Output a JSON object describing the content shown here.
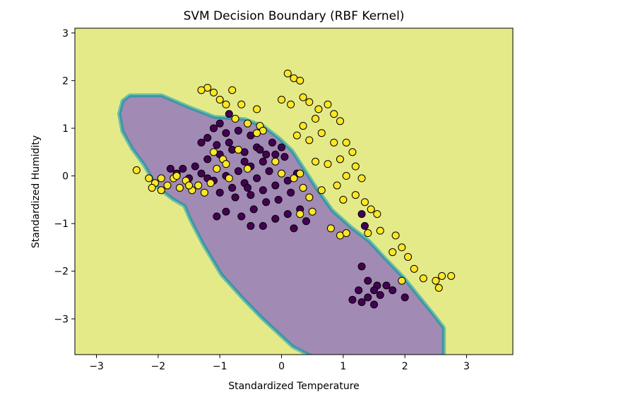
{
  "chart_data": {
    "type": "scatter",
    "title": "SVM Decision Boundary (RBF Kernel)",
    "xlabel": "Standardized Temperature",
    "ylabel": "Standardized Humidity",
    "xlim": [
      -3.35,
      3.75
    ],
    "ylim": [
      -3.75,
      3.1
    ],
    "xticks": [
      -3,
      -2,
      -1,
      0,
      1,
      2,
      3
    ],
    "yticks": [
      -3,
      -2,
      -1,
      0,
      1,
      2,
      3
    ],
    "grid": false,
    "colors": {
      "background_region": "#e5ea89",
      "decision_region": "#a18ab3",
      "boundary_band_1": "#6fc0a4",
      "boundary_band_2": "#3e95a6",
      "class_0": "#440154",
      "class_1": "#fde725",
      "marker_edge": "#000000"
    },
    "decision_region": {
      "description_class": "class_0",
      "polygon": [
        [
          -2.6,
          1.3
        ],
        [
          -2.55,
          1.55
        ],
        [
          -2.45,
          1.65
        ],
        [
          -1.95,
          1.65
        ],
        [
          -1.5,
          1.4
        ],
        [
          -1.1,
          1.2
        ],
        [
          -0.6,
          1.15
        ],
        [
          -0.3,
          1.0
        ],
        [
          -0.05,
          0.75
        ],
        [
          0.15,
          0.5
        ],
        [
          0.35,
          0.1
        ],
        [
          0.55,
          -0.3
        ],
        [
          0.8,
          -0.75
        ],
        [
          1.1,
          -1.1
        ],
        [
          1.4,
          -1.4
        ],
        [
          1.65,
          -1.75
        ],
        [
          1.95,
          -2.15
        ],
        [
          2.2,
          -2.55
        ],
        [
          2.45,
          -2.95
        ],
        [
          2.6,
          -3.2
        ],
        [
          2.6,
          -3.75
        ],
        [
          0.5,
          -3.75
        ],
        [
          0.2,
          -3.55
        ],
        [
          -0.3,
          -2.95
        ],
        [
          -0.6,
          -2.55
        ],
        [
          -0.95,
          -2.05
        ],
        [
          -1.25,
          -1.4
        ],
        [
          -1.45,
          -0.9
        ],
        [
          -1.55,
          -0.6
        ],
        [
          -1.75,
          -0.45
        ],
        [
          -2.0,
          -0.2
        ],
        [
          -2.2,
          0.25
        ],
        [
          -2.4,
          0.6
        ],
        [
          -2.55,
          0.95
        ]
      ]
    },
    "series": [
      {
        "class": 0,
        "points": [
          [
            -1.1,
            1.0
          ],
          [
            -1.0,
            1.1
          ],
          [
            -0.85,
            1.3
          ],
          [
            -1.2,
            0.8
          ],
          [
            -1.3,
            0.7
          ],
          [
            -0.9,
            0.9
          ],
          [
            -0.7,
            0.95
          ],
          [
            -0.5,
            0.85
          ],
          [
            -0.4,
            0.6
          ],
          [
            -0.6,
            0.5
          ],
          [
            -0.8,
            0.55
          ],
          [
            -1.0,
            0.45
          ],
          [
            -1.2,
            0.35
          ],
          [
            -1.4,
            0.2
          ],
          [
            -1.6,
            0.15
          ],
          [
            -1.8,
            0.15
          ],
          [
            -1.7,
            0.05
          ],
          [
            -1.5,
            -0.05
          ],
          [
            -1.3,
            0.05
          ],
          [
            -1.1,
            -0.1
          ],
          [
            -0.9,
            0.0
          ],
          [
            -0.7,
            0.1
          ],
          [
            -0.5,
            0.2
          ],
          [
            -0.3,
            0.3
          ],
          [
            -0.1,
            0.45
          ],
          [
            0.05,
            0.4
          ],
          [
            -0.2,
            0.1
          ],
          [
            -0.4,
            -0.05
          ],
          [
            -0.6,
            -0.15
          ],
          [
            -0.8,
            -0.25
          ],
          [
            -1.0,
            -0.35
          ],
          [
            -0.5,
            -0.4
          ],
          [
            -0.3,
            -0.3
          ],
          [
            -0.1,
            -0.2
          ],
          [
            0.1,
            -0.1
          ],
          [
            0.25,
            0.05
          ],
          [
            0.15,
            -0.35
          ],
          [
            -0.05,
            -0.5
          ],
          [
            -0.25,
            -0.55
          ],
          [
            -0.45,
            -0.7
          ],
          [
            -0.65,
            -0.85
          ],
          [
            -0.9,
            -0.75
          ],
          [
            -1.05,
            -0.85
          ],
          [
            -0.5,
            -1.05
          ],
          [
            -0.3,
            -1.05
          ],
          [
            -0.1,
            -0.9
          ],
          [
            0.1,
            -0.8
          ],
          [
            0.3,
            -0.7
          ],
          [
            0.4,
            -0.95
          ],
          [
            0.2,
            -1.1
          ],
          [
            -0.35,
            0.55
          ],
          [
            -0.15,
            0.7
          ],
          [
            0.0,
            0.6
          ],
          [
            -0.85,
            0.7
          ],
          [
            -1.05,
            0.65
          ],
          [
            -0.6,
            0.3
          ],
          [
            -0.25,
            0.45
          ],
          [
            -0.75,
            -0.45
          ],
          [
            -0.55,
            -0.25
          ],
          [
            -1.2,
            -0.05
          ],
          [
            1.3,
            -0.8
          ],
          [
            1.35,
            -1.05
          ],
          [
            1.3,
            -1.9
          ],
          [
            1.4,
            -2.2
          ],
          [
            1.55,
            -2.3
          ],
          [
            1.25,
            -2.4
          ],
          [
            1.4,
            -2.55
          ],
          [
            1.6,
            -2.5
          ],
          [
            1.8,
            -2.4
          ],
          [
            1.5,
            -2.7
          ],
          [
            1.3,
            -2.65
          ],
          [
            1.7,
            -2.3
          ],
          [
            2.0,
            -2.55
          ],
          [
            1.15,
            -2.6
          ],
          [
            1.5,
            -2.4
          ]
        ]
      },
      {
        "class": 1,
        "points": [
          [
            -1.2,
            1.85
          ],
          [
            -1.1,
            1.75
          ],
          [
            -1.0,
            1.6
          ],
          [
            -0.8,
            1.8
          ],
          [
            -0.65,
            1.5
          ],
          [
            -1.3,
            1.8
          ],
          [
            -0.4,
            1.4
          ],
          [
            -0.35,
            1.05
          ],
          [
            -0.3,
            0.95
          ],
          [
            0.1,
            2.15
          ],
          [
            0.2,
            2.05
          ],
          [
            0.3,
            2.0
          ],
          [
            0.0,
            1.6
          ],
          [
            0.15,
            1.5
          ],
          [
            0.35,
            1.65
          ],
          [
            0.45,
            1.55
          ],
          [
            0.6,
            1.4
          ],
          [
            0.75,
            1.5
          ],
          [
            0.85,
            1.3
          ],
          [
            0.95,
            1.15
          ],
          [
            0.55,
            1.2
          ],
          [
            0.35,
            1.05
          ],
          [
            0.25,
            0.85
          ],
          [
            0.45,
            0.75
          ],
          [
            0.65,
            0.9
          ],
          [
            0.85,
            0.7
          ],
          [
            1.05,
            0.7
          ],
          [
            1.15,
            0.5
          ],
          [
            0.95,
            0.35
          ],
          [
            0.75,
            0.25
          ],
          [
            0.55,
            0.3
          ],
          [
            1.2,
            0.2
          ],
          [
            1.3,
            -0.05
          ],
          [
            1.05,
            0.0
          ],
          [
            0.9,
            -0.2
          ],
          [
            0.65,
            -0.3
          ],
          [
            0.45,
            -0.45
          ],
          [
            0.3,
            0.05
          ],
          [
            0.2,
            -0.05
          ],
          [
            0.35,
            -0.25
          ],
          [
            1.0,
            -0.5
          ],
          [
            1.2,
            -0.4
          ],
          [
            1.35,
            -0.55
          ],
          [
            1.45,
            -0.7
          ],
          [
            1.55,
            -0.8
          ],
          [
            1.4,
            -1.2
          ],
          [
            1.6,
            -1.15
          ],
          [
            1.85,
            -1.25
          ],
          [
            1.95,
            -1.5
          ],
          [
            1.8,
            -1.6
          ],
          [
            2.05,
            -1.7
          ],
          [
            2.15,
            -1.95
          ],
          [
            2.3,
            -2.15
          ],
          [
            2.5,
            -2.2
          ],
          [
            2.6,
            -2.1
          ],
          [
            2.75,
            -2.1
          ],
          [
            2.55,
            -2.35
          ],
          [
            1.95,
            -2.2
          ],
          [
            0.95,
            -1.25
          ],
          [
            0.8,
            -1.1
          ],
          [
            1.05,
            -1.2
          ],
          [
            0.5,
            -0.75
          ],
          [
            0.3,
            -0.8
          ],
          [
            0.0,
            0.05
          ],
          [
            -0.1,
            0.3
          ],
          [
            -0.7,
            0.55
          ],
          [
            -0.95,
            0.35
          ],
          [
            -1.1,
            0.5
          ],
          [
            -0.9,
            0.25
          ],
          [
            -2.35,
            0.12
          ],
          [
            -2.15,
            -0.05
          ],
          [
            -2.05,
            -0.15
          ],
          [
            -1.95,
            -0.05
          ],
          [
            -1.85,
            -0.2
          ],
          [
            -1.75,
            -0.05
          ],
          [
            -1.65,
            -0.25
          ],
          [
            -1.55,
            -0.1
          ],
          [
            -1.45,
            -0.3
          ],
          [
            -1.35,
            -0.2
          ],
          [
            -1.25,
            -0.35
          ],
          [
            -1.95,
            -0.3
          ],
          [
            -2.1,
            -0.25
          ],
          [
            -1.7,
            0.0
          ],
          [
            -1.5,
            -0.2
          ],
          [
            -1.15,
            -0.15
          ],
          [
            -1.05,
            0.15
          ],
          [
            -0.85,
            -0.05
          ],
          [
            -0.55,
            0.15
          ],
          [
            -0.4,
            0.9
          ],
          [
            -0.55,
            1.1
          ],
          [
            -0.9,
            1.5
          ],
          [
            -0.75,
            1.2
          ]
        ]
      }
    ]
  }
}
